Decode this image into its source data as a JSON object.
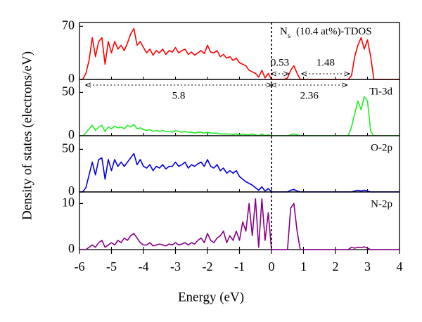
{
  "chart_data": {
    "type": "line",
    "xlabel": "Energy (eV)",
    "ylabel": "Density of states (electrons/eV)",
    "xlim": [
      -6,
      4
    ],
    "xticks": [
      -6,
      -5,
      -4,
      -3,
      -2,
      -1,
      0,
      1,
      2,
      3,
      4
    ],
    "vline": 0,
    "tdos_label": {
      "main": "N",
      "sub": "s",
      "rest": "(10.4 at%)-TDOS"
    },
    "x": [
      -6.0,
      -5.9,
      -5.8,
      -5.7,
      -5.6,
      -5.5,
      -5.4,
      -5.3,
      -5.2,
      -5.1,
      -5.0,
      -4.9,
      -4.8,
      -4.7,
      -4.6,
      -4.5,
      -4.4,
      -4.3,
      -4.2,
      -4.1,
      -4.0,
      -3.9,
      -3.8,
      -3.7,
      -3.6,
      -3.5,
      -3.4,
      -3.3,
      -3.2,
      -3.1,
      -3.0,
      -2.9,
      -2.8,
      -2.7,
      -2.6,
      -2.5,
      -2.4,
      -2.3,
      -2.2,
      -2.1,
      -2.0,
      -1.9,
      -1.8,
      -1.7,
      -1.6,
      -1.5,
      -1.4,
      -1.3,
      -1.2,
      -1.1,
      -1.0,
      -0.9,
      -0.8,
      -0.7,
      -0.6,
      -0.5,
      -0.4,
      -0.3,
      -0.2,
      -0.1,
      0.0,
      0.1,
      0.2,
      0.3,
      0.4,
      0.5,
      0.6,
      0.7,
      0.8,
      0.9,
      1.0,
      1.1,
      1.2,
      1.3,
      1.4,
      1.5,
      1.6,
      1.7,
      1.8,
      1.9,
      2.0,
      2.1,
      2.2,
      2.3,
      2.4,
      2.5,
      2.6,
      2.7,
      2.8,
      2.9,
      3.0,
      3.1,
      3.2,
      3.3,
      3.4,
      3.5,
      3.6,
      3.7,
      3.8,
      3.9,
      4.0
    ],
    "panels": [
      {
        "color": "#ff0000",
        "ylim": [
          0,
          75
        ],
        "yticks": [
          0,
          70
        ],
        "values": [
          0,
          0,
          8,
          25,
          55,
          30,
          50,
          55,
          20,
          50,
          35,
          50,
          40,
          45,
          38,
          48,
          60,
          67,
          45,
          50,
          42,
          35,
          40,
          32,
          38,
          35,
          40,
          33,
          38,
          36,
          42,
          35,
          38,
          40,
          33,
          36,
          32,
          35,
          38,
          34,
          45,
          36,
          35,
          38,
          30,
          33,
          28,
          30,
          25,
          28,
          22,
          20,
          18,
          12,
          10,
          8,
          3,
          12,
          2,
          8,
          0,
          0,
          0,
          0,
          0,
          2,
          12,
          18,
          8,
          0,
          0,
          0,
          0,
          0,
          0,
          0,
          0,
          0,
          0,
          0,
          0,
          0,
          0,
          0,
          0,
          5,
          30,
          45,
          55,
          40,
          52,
          30,
          0,
          0,
          0,
          0,
          0,
          0,
          0,
          0,
          0
        ]
      },
      {
        "label": "Ti-3d",
        "color": "#22ee22",
        "ylim": [
          0,
          65
        ],
        "yticks": [
          0,
          50
        ],
        "values": [
          0,
          0,
          3,
          8,
          12,
          6,
          10,
          12,
          5,
          10,
          8,
          11,
          9,
          10,
          8,
          12,
          10,
          13,
          8,
          9,
          7,
          6,
          7,
          5,
          6,
          5,
          6,
          5,
          5,
          4,
          6,
          5,
          4,
          5,
          4,
          4,
          3,
          4,
          4,
          3,
          4,
          3,
          3,
          3,
          2,
          2,
          2,
          2,
          1,
          2,
          1,
          2,
          1,
          1,
          2,
          1,
          0,
          2,
          0,
          1,
          0,
          0,
          0,
          0,
          0,
          0,
          1,
          2,
          1,
          0,
          0,
          0,
          0,
          0,
          0,
          0,
          0,
          0,
          0,
          0,
          0,
          0,
          0,
          0,
          0,
          10,
          25,
          40,
          30,
          45,
          40,
          5,
          0,
          0,
          0,
          0,
          0,
          0,
          0,
          0,
          0
        ]
      },
      {
        "label": "O-2p",
        "color": "#0000dd",
        "ylim": [
          0,
          66
        ],
        "yticks": [
          0,
          50
        ],
        "values": [
          0,
          0,
          5,
          20,
          35,
          20,
          38,
          40,
          15,
          38,
          25,
          38,
          30,
          35,
          30,
          35,
          40,
          45,
          32,
          38,
          30,
          28,
          32,
          25,
          30,
          28,
          32,
          27,
          30,
          30,
          35,
          30,
          32,
          35,
          28,
          32,
          30,
          33,
          35,
          30,
          38,
          30,
          28,
          32,
          25,
          28,
          22,
          25,
          22,
          25,
          18,
          15,
          12,
          10,
          8,
          5,
          2,
          6,
          1,
          4,
          0,
          0,
          0,
          0,
          0,
          0,
          2,
          3,
          1,
          0,
          0,
          0,
          0,
          0,
          0,
          0,
          0,
          0,
          0,
          0,
          0,
          0,
          0,
          0,
          0,
          0,
          1,
          2,
          1,
          2,
          1,
          0,
          0,
          0,
          0,
          0,
          0,
          0,
          0,
          0,
          0
        ]
      },
      {
        "label": "N-2p",
        "color": "#880088",
        "ylim": [
          0,
          12.5
        ],
        "yticks": [
          0,
          10
        ],
        "values": [
          0,
          0,
          0,
          0.5,
          1,
          0.5,
          1.5,
          2,
          0.5,
          1,
          1.5,
          1,
          2,
          1.5,
          2.5,
          2,
          3,
          3.5,
          2.5,
          1.5,
          1,
          1,
          1.5,
          0.8,
          1,
          1.2,
          1,
          0.8,
          1.2,
          1,
          1.5,
          1,
          1.2,
          1.5,
          1,
          1.5,
          1.2,
          2,
          2.5,
          1.5,
          3.5,
          2,
          1.5,
          2.5,
          3,
          4,
          1.5,
          3,
          2,
          4,
          2,
          6,
          4,
          10,
          3,
          11,
          0.5,
          11,
          2,
          8,
          0,
          0,
          0,
          0,
          0,
          0,
          9,
          10,
          4,
          0,
          0,
          0,
          0,
          0,
          0,
          0,
          0,
          0,
          0,
          0,
          0,
          0,
          0,
          0,
          0,
          0.5,
          0.3,
          0.5,
          0.4,
          0.6,
          0.3,
          0,
          0,
          0,
          0,
          0,
          0,
          0,
          0,
          0,
          0
        ]
      }
    ],
    "annotations": [
      {
        "text": "5.8",
        "from": -5.8,
        "to": 0
      },
      {
        "text": "2.36",
        "from": 0,
        "to": 2.36
      },
      {
        "text": "0.53",
        "from": 0,
        "to": 0.53
      },
      {
        "text": "1.48",
        "from": 0.95,
        "to": 2.43
      }
    ]
  }
}
